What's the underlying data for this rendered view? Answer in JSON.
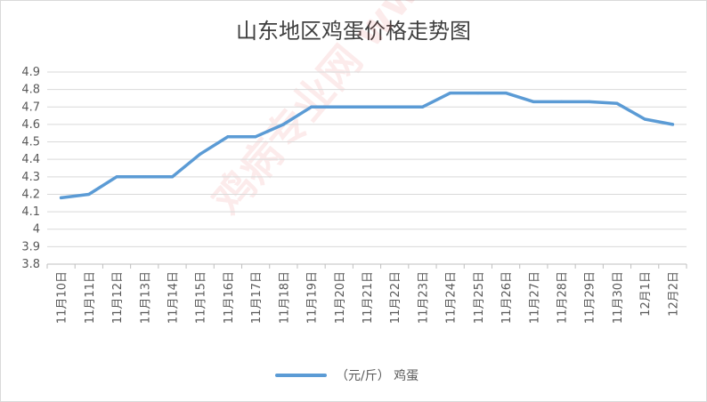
{
  "chart_data": {
    "type": "line",
    "title": "山东地区鸡蛋价格走势图",
    "categories": [
      "11月10日",
      "11月11日",
      "11月12日",
      "11月13日",
      "11月14日",
      "11月15日",
      "11月16日",
      "11月17日",
      "11月18日",
      "11月19日",
      "11月20日",
      "11月21日",
      "11月22日",
      "11月23日",
      "11月24日",
      "11月25日",
      "11月26日",
      "11月27日",
      "11月28日",
      "11月29日",
      "11月30日",
      "12月1日",
      "12月2日"
    ],
    "series": [
      {
        "name": "（元/斤） 鸡蛋",
        "color": "#5b9bd5",
        "values": [
          4.18,
          4.2,
          4.3,
          4.3,
          4.3,
          4.43,
          4.53,
          4.53,
          4.6,
          4.7,
          4.7,
          4.7,
          4.7,
          4.7,
          4.78,
          4.78,
          4.78,
          4.73,
          4.73,
          4.73,
          4.72,
          4.63,
          4.6
        ]
      }
    ],
    "ylim": [
      3.8,
      4.9
    ],
    "yticks": [
      "3.8",
      "3.9",
      "4",
      "4.1",
      "4.2",
      "4.3",
      "4.4",
      "4.5",
      "4.6",
      "4.7",
      "4.8",
      "4.9"
    ],
    "grid": true,
    "legend": "bottom",
    "watermark": "鸡病专业网 www.jbzyw.com"
  }
}
